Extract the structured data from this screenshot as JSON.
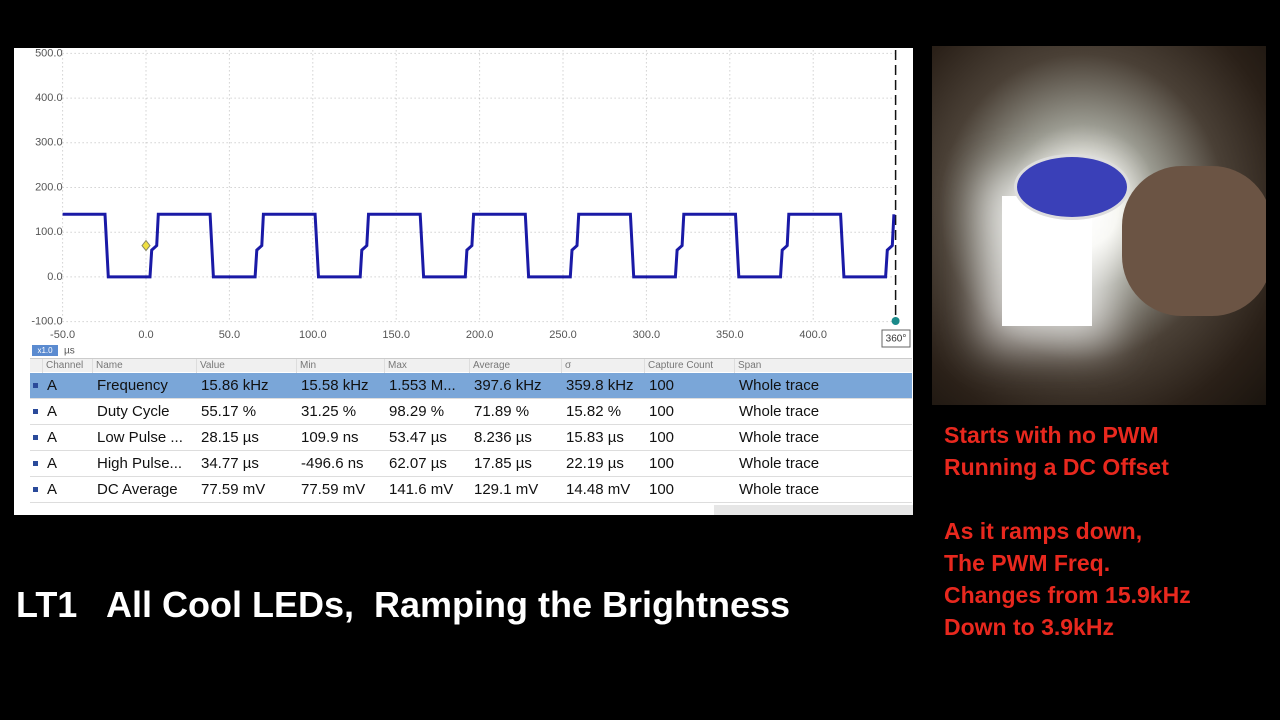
{
  "plot": {
    "type": "line",
    "xlim": [
      -50,
      450
    ],
    "ylim": [
      -100,
      500
    ],
    "xticks": [
      {
        "value": -50,
        "label": "-50.0"
      },
      {
        "value": 0,
        "label": "0.0"
      },
      {
        "value": 50,
        "label": "50.0"
      },
      {
        "value": 100,
        "label": "100.0"
      },
      {
        "value": 150,
        "label": "150.0"
      },
      {
        "value": 200,
        "label": "200.0"
      },
      {
        "value": 250,
        "label": "250.0"
      },
      {
        "value": 300,
        "label": "300.0"
      },
      {
        "value": 350,
        "label": "350.0"
      },
      {
        "value": 400,
        "label": "400.0"
      }
    ],
    "yticks": [
      {
        "value": -100,
        "label": "-100.0"
      },
      {
        "value": 0,
        "label": "0.0"
      },
      {
        "value": 100,
        "label": "100.0"
      },
      {
        "value": 200,
        "label": "200.0"
      },
      {
        "value": 300,
        "label": "300.0"
      },
      {
        "value": 400,
        "label": "400.0"
      },
      {
        "value": 500,
        "label": "500.0"
      }
    ],
    "grid": true,
    "x_unit": "µs",
    "zoom": "x1.0",
    "cursor_label": "360°",
    "series": [
      {
        "color": "#1a1aa6",
        "x": [
          -50,
          -24.6,
          -22.6,
          2.4,
          3.4,
          6.4,
          7.4,
          38.4,
          40.4,
          65.4,
          66.4,
          69.4,
          70.4,
          101.4,
          103.4,
          128.4,
          129.4,
          132.4,
          133.4,
          164.4,
          166.4,
          191.4,
          192.4,
          195.4,
          196.4,
          227.4,
          229.4,
          254.4,
          255.4,
          258.4,
          259.4,
          290.4,
          292.4,
          317.4,
          318.4,
          321.4,
          322.4,
          353.4,
          355.4,
          380.4,
          381.4,
          384.4,
          385.4,
          416.4,
          418.4,
          443.4,
          444.4,
          447.4,
          448.4
        ],
        "values": [
          140,
          140,
          0,
          0,
          60,
          70,
          140,
          140,
          0,
          0,
          60,
          70,
          140,
          140,
          0,
          0,
          60,
          70,
          140,
          140,
          0,
          0,
          60,
          70,
          140,
          140,
          0,
          0,
          60,
          70,
          140,
          140,
          0,
          0,
          60,
          70,
          140,
          140,
          0,
          0,
          60,
          70,
          140,
          140,
          0,
          0,
          60,
          70,
          140
        ]
      }
    ]
  },
  "table": {
    "columns": [
      "Channel",
      "Name",
      "Value",
      "Min",
      "Max",
      "Average",
      "σ",
      "Capture Count",
      "Span"
    ],
    "rows": [
      [
        "A",
        "Frequency",
        "15.86 kHz",
        "15.58 kHz",
        "1.553 M...",
        "397.6 kHz",
        "359.8 kHz",
        "100",
        "Whole trace"
      ],
      [
        "A",
        "Duty Cycle",
        "55.17 %",
        "31.25 %",
        "98.29 %",
        "71.89 %",
        "15.82 %",
        "100",
        "Whole trace"
      ],
      [
        "A",
        "Low Pulse ...",
        "28.15 µs",
        "109.9 ns",
        "53.47 µs",
        "8.236 µs",
        "15.83 µs",
        "100",
        "Whole trace"
      ],
      [
        "A",
        "High Pulse...",
        "34.77 µs",
        "-496.6 ns",
        "62.07 µs",
        "17.85 µs",
        "22.19 µs",
        "100",
        "Whole trace"
      ],
      [
        "A",
        "DC Average",
        "77.59 mV",
        "77.59 mV",
        "141.6 mV",
        "129.1 mV",
        "14.48 mV",
        "100",
        "Whole trace"
      ]
    ]
  },
  "captions": {
    "title": "LT1   All Cool LEDs,  Ramping the Brightness",
    "notes": [
      [
        "Starts with no PWM",
        "Running a DC Offset"
      ],
      [
        "As it ramps down,",
        "The PWM Freq.",
        "Changes from 15.9kHz",
        "Down to 3.9kHz"
      ]
    ]
  }
}
